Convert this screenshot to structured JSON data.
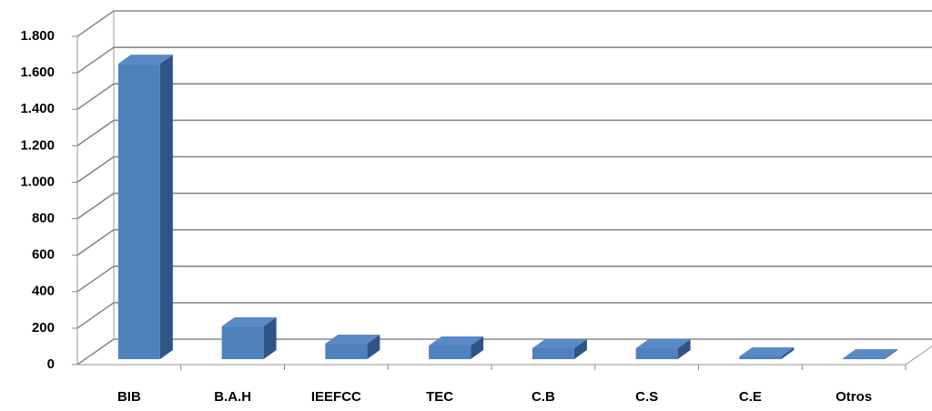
{
  "chart_data": {
    "type": "bar3d",
    "categories": [
      "BIB",
      "B.A.H",
      "IEEFCC",
      "TEC",
      "C.B",
      "C.S",
      "C.E",
      "Otros"
    ],
    "values": [
      1620,
      180,
      85,
      75,
      60,
      60,
      15,
      5
    ],
    "color": "#4f81bd",
    "ylim": [
      0,
      1800
    ],
    "yticks": [
      0,
      200,
      400,
      600,
      800,
      {
        "value": 1000,
        "label": "1.000"
      },
      {
        "value": 1200,
        "label": "1.200"
      },
      {
        "value": 1400,
        "label": "1.400"
      },
      {
        "value": 1600,
        "label": "1.600"
      },
      {
        "value": 1800,
        "label": "1.800"
      }
    ],
    "grid": true
  }
}
